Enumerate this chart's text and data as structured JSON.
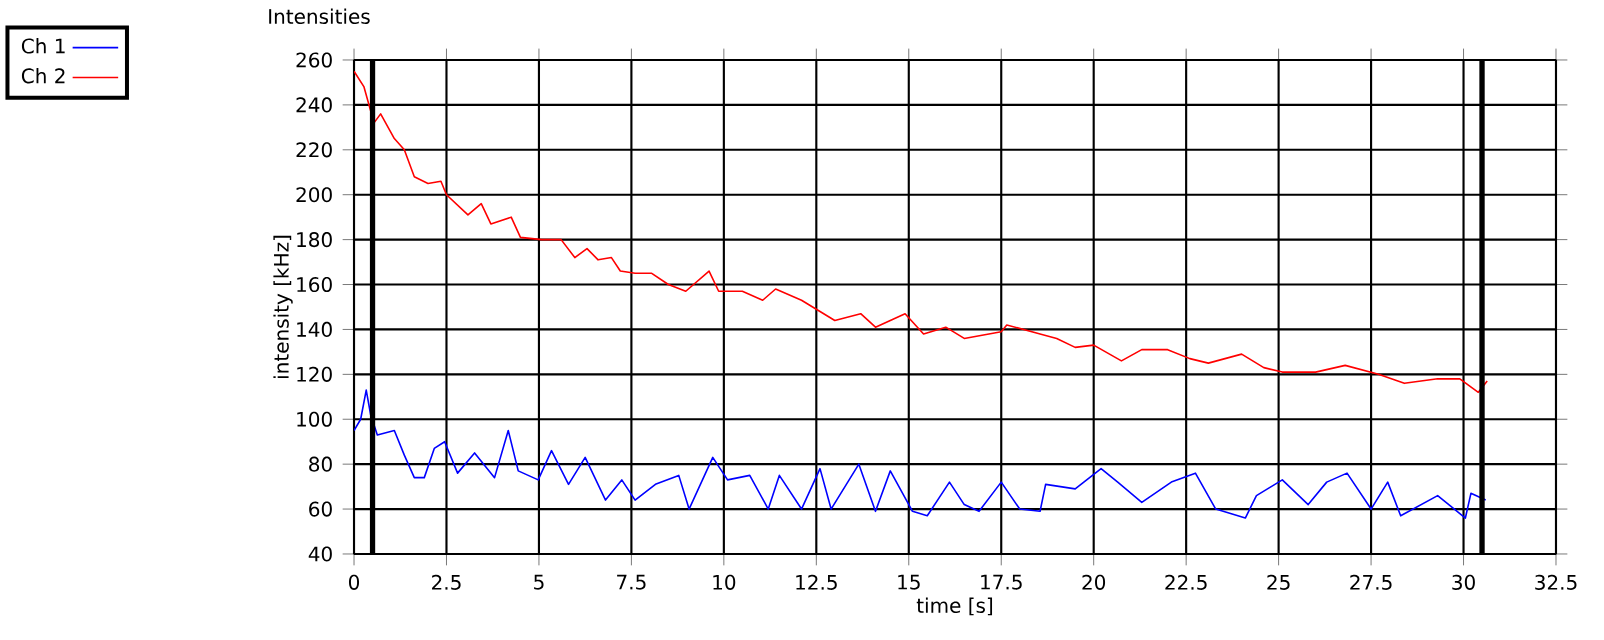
{
  "chart_data": {
    "type": "line",
    "title": "Intensities",
    "xlabel": "time [s]",
    "ylabel": "intensity [kHz]",
    "xlim": [
      0,
      32.5
    ],
    "xticks": [
      0,
      2.5,
      5,
      7.5,
      10,
      12.5,
      15,
      17.5,
      20,
      22.5,
      25,
      27.5,
      30,
      32.5
    ],
    "ylim": [
      40,
      260
    ],
    "yticks": [
      40,
      60,
      80,
      100,
      120,
      140,
      160,
      180,
      200,
      220,
      240,
      260
    ],
    "grid": true,
    "legend": "top left",
    "marker": "none",
    "line_style": "solid",
    "ref_lines": [
      {
        "axis": "x",
        "value": 0.5,
        "color": "#000000"
      },
      {
        "axis": "x",
        "value": 30.5,
        "color": "#000000"
      }
    ],
    "series": [
      {
        "name": "Ch 1",
        "color": "#0000ff",
        "x": [
          0,
          0.18,
          0.33,
          0.45,
          0.63,
          1.09,
          1.36,
          1.63,
          1.9,
          2.17,
          2.45,
          2.8,
          3.26,
          3.8,
          4.17,
          4.44,
          4.98,
          5.34,
          5.8,
          6.25,
          6.8,
          7.24,
          7.6,
          8.15,
          8.78,
          9.06,
          9.7,
          10.1,
          10.7,
          11.2,
          11.5,
          12.1,
          12.6,
          12.9,
          13.65,
          14.1,
          14.5,
          15.1,
          15.5,
          16.1,
          16.5,
          16.9,
          17.5,
          18.0,
          18.55,
          18.7,
          19.5,
          20.2,
          20.65,
          21.3,
          22.1,
          22.75,
          23.3,
          24.1,
          24.4,
          25.1,
          25.8,
          26.3,
          26.85,
          27.5,
          27.95,
          28.3,
          29.3,
          30.05,
          30.2,
          30.6
        ],
        "values": [
          95,
          100,
          113,
          102,
          93,
          95,
          84,
          74,
          74,
          87,
          90,
          76,
          85,
          74,
          95,
          77,
          73,
          86,
          71,
          83,
          64,
          73,
          64,
          71,
          75,
          60,
          83,
          73,
          75,
          60,
          75,
          60,
          78,
          60,
          80,
          59,
          77,
          59,
          57,
          72,
          62,
          59,
          72,
          60,
          59,
          71,
          69,
          78,
          72,
          63,
          72,
          76,
          60,
          56,
          66,
          73,
          62,
          72,
          76,
          60,
          72,
          57,
          66,
          56,
          67,
          64
        ]
      },
      {
        "name": "Ch 2",
        "color": "#ff0000",
        "x": [
          0,
          0.27,
          0.54,
          0.72,
          1.09,
          1.36,
          1.63,
          2.0,
          2.35,
          2.5,
          3.08,
          3.44,
          3.7,
          4.25,
          4.5,
          5.07,
          5.6,
          5.97,
          6.3,
          6.6,
          6.96,
          7.2,
          7.6,
          8.05,
          8.5,
          8.97,
          9.6,
          9.86,
          10.5,
          11.05,
          11.4,
          12.1,
          12.6,
          13.0,
          13.7,
          14.1,
          14.9,
          15.4,
          16.0,
          16.5,
          17.5,
          17.65,
          18.55,
          19.0,
          19.5,
          20.0,
          20.75,
          21.3,
          22.0,
          22.6,
          23.1,
          24.0,
          24.6,
          25.1,
          26.0,
          26.8,
          27.7,
          28.4,
          29.3,
          29.9,
          30.4,
          30.64
        ],
        "values": [
          255,
          248,
          232,
          236,
          225,
          220,
          208,
          205,
          206,
          200,
          191,
          196,
          187,
          190,
          181,
          180,
          180,
          172,
          176,
          171,
          172,
          166,
          165,
          165,
          160,
          157,
          166,
          157,
          157,
          153,
          158,
          153,
          148,
          144,
          147,
          141,
          147,
          138,
          141,
          136,
          139,
          142,
          138,
          136,
          132,
          133,
          126,
          131,
          131,
          127,
          125,
          129,
          123,
          121,
          121,
          124,
          120,
          116,
          118,
          118,
          112,
          117
        ]
      }
    ]
  }
}
